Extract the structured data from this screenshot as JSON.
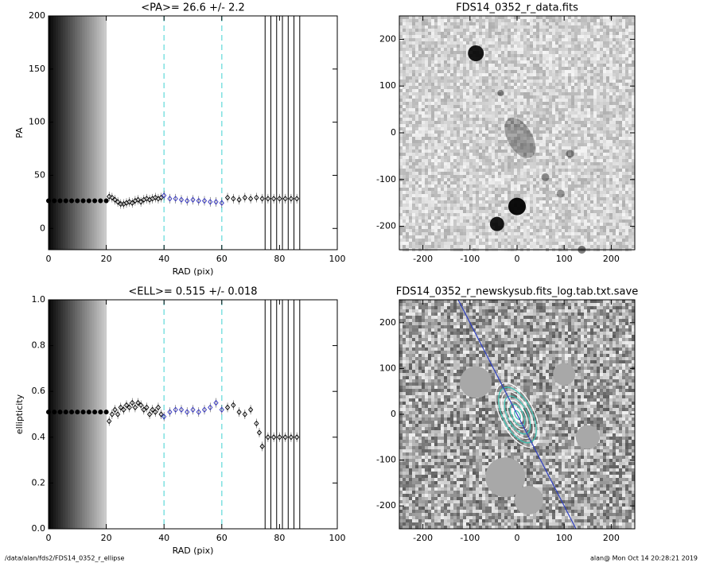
{
  "chart_data": [
    {
      "type": "scatter",
      "title": "<PA>=  26.6 +/-   2.2",
      "x_label": "RAD (pix)",
      "y_label": "PA",
      "xlim": [
        0,
        100
      ],
      "ylim": [
        -20,
        200
      ],
      "xticks": [
        0,
        20,
        40,
        60,
        80,
        100
      ],
      "yticks": [
        0,
        50,
        100,
        150,
        200
      ],
      "vlines": [
        {
          "x": 40,
          "style": "dashed",
          "color": "#7fe0e0"
        },
        {
          "x": 60,
          "style": "dashed",
          "color": "#7fe0e0"
        },
        {
          "x": 75,
          "style": "solid",
          "color": "#000000"
        },
        {
          "x": 77,
          "style": "solid",
          "color": "#000000"
        },
        {
          "x": 79,
          "style": "solid",
          "color": "#000000"
        },
        {
          "x": 81,
          "style": "solid",
          "color": "#000000"
        },
        {
          "x": 83,
          "style": "solid",
          "color": "#000000"
        },
        {
          "x": 85,
          "style": "solid",
          "color": "#000000"
        },
        {
          "x": 87,
          "style": "solid",
          "color": "#000000"
        }
      ],
      "series": [
        {
          "color": "#000000",
          "marker": "dot",
          "x": [
            0,
            2,
            4,
            6,
            8,
            10,
            12,
            14,
            16,
            18,
            20
          ],
          "values": [
            26,
            26,
            26,
            26,
            26,
            26,
            26,
            26,
            26,
            26,
            26
          ]
        },
        {
          "color": "#000000",
          "marker": "diamond",
          "x": [
            21,
            22,
            23,
            24,
            25,
            26,
            27,
            28,
            29,
            30,
            31,
            32,
            33,
            34,
            35,
            36,
            37,
            38,
            39,
            62,
            64,
            66,
            68,
            70,
            72,
            74,
            76,
            78,
            80,
            82,
            84,
            86
          ],
          "values": [
            30,
            29,
            27,
            25,
            23,
            23,
            24,
            25,
            24,
            26,
            27,
            25,
            27,
            28,
            27,
            28,
            29,
            28,
            29,
            29,
            28,
            27,
            29,
            28,
            29,
            28,
            28,
            28,
            28,
            28,
            28,
            28
          ]
        },
        {
          "color": "#3030c0",
          "marker": "diamond",
          "x": [
            40,
            42,
            44,
            46,
            48,
            50,
            52,
            54,
            56,
            58,
            60
          ],
          "values": [
            31,
            28,
            28,
            27,
            26,
            27,
            26,
            26,
            25,
            25,
            24
          ]
        }
      ]
    },
    {
      "type": "image",
      "title": "FDS14_0352_r_data.fits",
      "xlim": [
        -250,
        250
      ],
      "ylim": [
        -250,
        250
      ],
      "xticks": [
        -200,
        -100,
        0,
        100,
        200
      ],
      "yticks": [
        -200,
        -100,
        0,
        100,
        200
      ]
    },
    {
      "type": "scatter",
      "title": "<ELL>= 0.515 +/-  0.018",
      "x_label": "RAD (pix)",
      "y_label": "ellipticity",
      "xlim": [
        0,
        100
      ],
      "ylim": [
        0,
        1
      ],
      "xticks": [
        0,
        20,
        40,
        60,
        80,
        100
      ],
      "yticks": [
        {
          "value": 0,
          "label": "0.0"
        },
        0.2,
        0.4,
        0.6,
        0.8,
        {
          "value": 1,
          "label": "1.0"
        }
      ],
      "vlines": [
        {
          "x": 40,
          "style": "dashed",
          "color": "#7fe0e0"
        },
        {
          "x": 60,
          "style": "dashed",
          "color": "#7fe0e0"
        },
        {
          "x": 75,
          "style": "solid",
          "color": "#000000"
        },
        {
          "x": 77,
          "style": "solid",
          "color": "#000000"
        },
        {
          "x": 79,
          "style": "solid",
          "color": "#000000"
        },
        {
          "x": 81,
          "style": "solid",
          "color": "#000000"
        },
        {
          "x": 83,
          "style": "solid",
          "color": "#000000"
        },
        {
          "x": 85,
          "style": "solid",
          "color": "#000000"
        },
        {
          "x": 87,
          "style": "solid",
          "color": "#000000"
        }
      ],
      "series": [
        {
          "color": "#000000",
          "marker": "dot",
          "x": [
            0,
            2,
            4,
            6,
            8,
            10,
            12,
            14,
            16,
            18,
            20
          ],
          "values": [
            0.51,
            0.51,
            0.51,
            0.51,
            0.51,
            0.51,
            0.51,
            0.51,
            0.51,
            0.51,
            0.51
          ]
        },
        {
          "color": "#000000",
          "marker": "diamond",
          "x": [
            21,
            22,
            23,
            24,
            25,
            26,
            27,
            28,
            29,
            30,
            31,
            32,
            33,
            34,
            35,
            36,
            37,
            38,
            39,
            62,
            64,
            66,
            68,
            70,
            72,
            73,
            74,
            76,
            78,
            80,
            82,
            84,
            86
          ],
          "values": [
            0.47,
            0.5,
            0.52,
            0.5,
            0.53,
            0.52,
            0.54,
            0.53,
            0.55,
            0.53,
            0.55,
            0.54,
            0.52,
            0.53,
            0.5,
            0.52,
            0.51,
            0.53,
            0.5,
            0.53,
            0.54,
            0.51,
            0.5,
            0.52,
            0.46,
            0.42,
            0.36,
            0.4,
            0.4,
            0.4,
            0.4,
            0.4,
            0.4
          ]
        },
        {
          "color": "#3030c0",
          "marker": "diamond",
          "x": [
            40,
            42,
            44,
            46,
            48,
            50,
            52,
            54,
            56,
            58,
            60
          ],
          "values": [
            0.49,
            0.51,
            0.52,
            0.52,
            0.51,
            0.52,
            0.51,
            0.52,
            0.53,
            0.55,
            0.52
          ]
        }
      ]
    },
    {
      "type": "image",
      "title": "FDS14_0352_r_newskysub.fits_log.tab.txt.save",
      "xlim": [
        -250,
        250
      ],
      "ylim": [
        -250,
        250
      ],
      "xticks": [
        -200,
        -100,
        0,
        100,
        200
      ],
      "yticks": [
        -200,
        -100,
        0,
        100,
        200
      ]
    }
  ],
  "footer": {
    "path": "/data/alan/fds2/FDS14_0352_r_ellipse",
    "stamp": "alan@  Mon Oct 14 20:28:21 2019"
  }
}
